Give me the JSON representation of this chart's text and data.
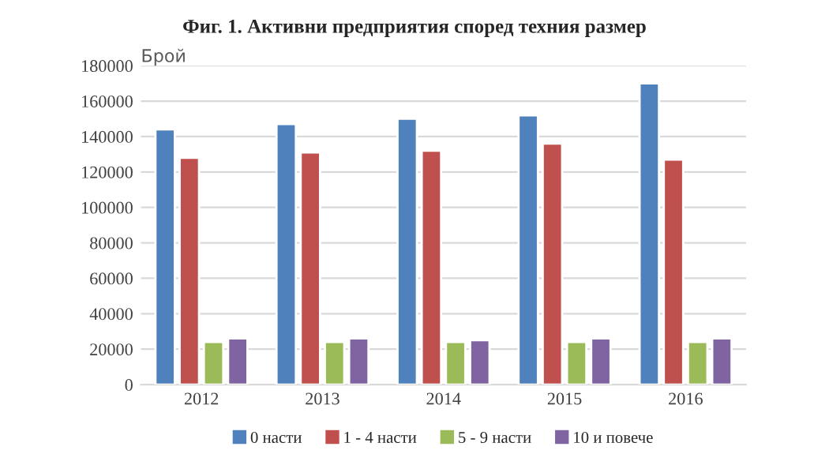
{
  "chart_data": {
    "type": "bar",
    "title": "Фиг. 1. Активни предприятия според техния размер",
    "ylabel": "Брой",
    "categories": [
      "2012",
      "2013",
      "2014",
      "2015",
      "2016"
    ],
    "series": [
      {
        "name": "0 насти",
        "color": "#4f81bd",
        "values": [
          144000,
          147000,
          150000,
          152000,
          170000
        ]
      },
      {
        "name": "1 - 4 насти",
        "color": "#c0504d",
        "values": [
          128000,
          131000,
          132000,
          136000,
          127000
        ]
      },
      {
        "name": "5 - 9 насти",
        "color": "#9bbb59",
        "values": [
          24000,
          24000,
          24000,
          24000,
          24000
        ]
      },
      {
        "name": "10 и повече",
        "color": "#8064a2",
        "values": [
          26000,
          26000,
          25000,
          26000,
          26000
        ]
      }
    ],
    "ylim": [
      0,
      180000
    ],
    "yticks": [
      0,
      20000,
      40000,
      60000,
      80000,
      100000,
      120000,
      140000,
      160000,
      180000
    ],
    "grid": "y",
    "legend": "bottom"
  }
}
